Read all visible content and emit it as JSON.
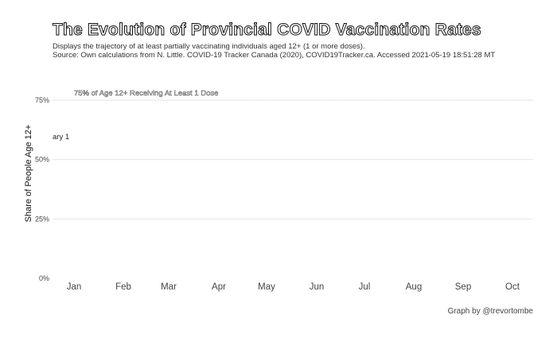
{
  "chart_data": {
    "type": "line",
    "title": "The Evolution of Provincial COVID Vaccination Rates",
    "subtitle": "Displays the trajectory of at least partially vaccinating individuals aged 12+ (1 or more doses).",
    "source": "Source: Own calculations from N. Little. COVID-19 Tracker Canada (2020), COVID19Tracker.ca. Accessed 2021-05-19 18:51:28 MT",
    "ylabel": "Share of People Age 12+",
    "xlabel": "",
    "x_ticks": [
      "Jan",
      "Feb",
      "Mar",
      "Apr",
      "May",
      "Jun",
      "Jul",
      "Aug",
      "Sep",
      "Oct"
    ],
    "y_ticks": [
      "0%",
      "25%",
      "50%",
      "75%"
    ],
    "ylim": [
      0,
      75
    ],
    "grid": true,
    "reference_line": {
      "value": 75,
      "label": "75% of Age 12+ Receiving At Least 1 Dose"
    },
    "annotations": [
      "ary 1"
    ],
    "series": []
  },
  "caption": "Graph by @trevortombe"
}
